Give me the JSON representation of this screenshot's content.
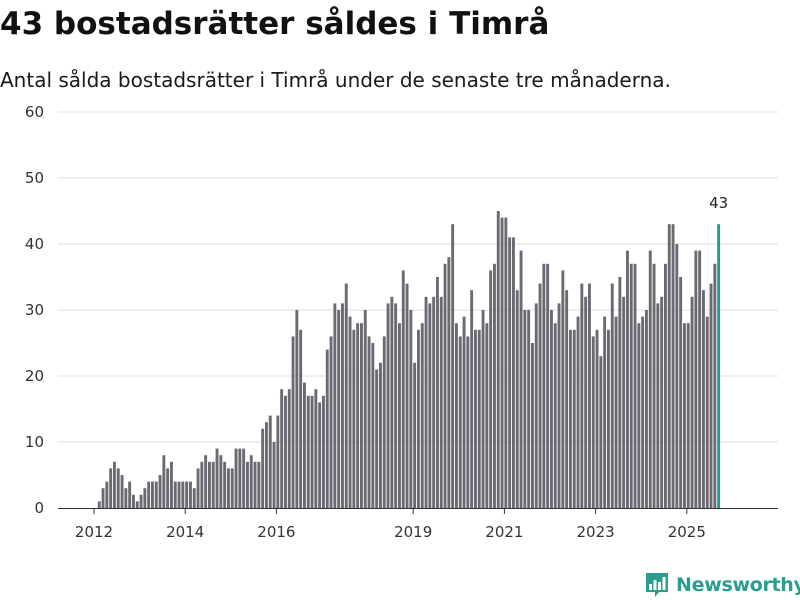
{
  "header": {
    "title": "43 bostadsrätter såldes i Timrå",
    "subtitle": "Antal sålda bostadsrätter i Timrå under de senaste tre månaderna."
  },
  "brand": {
    "name": "Newsworthy",
    "color": "#2a9d8f"
  },
  "colors": {
    "bar": "#6b6a72",
    "highlight": "#1a9e94",
    "grid": "#dddddd",
    "axis": "#333333"
  },
  "chart_data": {
    "type": "bar",
    "title": "43 bostadsrätter såldes i Timrå",
    "xlabel": "",
    "ylabel": "",
    "ylim": [
      0,
      60
    ],
    "yticks": [
      0,
      10,
      20,
      30,
      40,
      50,
      60
    ],
    "xticks": [
      {
        "label": "2012",
        "year": 2012
      },
      {
        "label": "2014",
        "year": 2014
      },
      {
        "label": "2016",
        "year": 2016
      },
      {
        "label": "2019",
        "year": 2019
      },
      {
        "label": "2021",
        "year": 2021
      },
      {
        "label": "2023",
        "year": 2023
      },
      {
        "label": "2025",
        "year": 2025
      }
    ],
    "start": {
      "year": 2012,
      "month": 1
    },
    "highlight_label": "43",
    "values": [
      0,
      1,
      3,
      4,
      6,
      7,
      6,
      5,
      3,
      4,
      2,
      1,
      2,
      3,
      4,
      4,
      4,
      5,
      8,
      6,
      7,
      4,
      4,
      4,
      4,
      4,
      3,
      6,
      7,
      8,
      7,
      7,
      9,
      8,
      7,
      6,
      6,
      9,
      9,
      9,
      7,
      8,
      7,
      7,
      12,
      13,
      14,
      10,
      14,
      18,
      17,
      18,
      26,
      30,
      27,
      19,
      17,
      17,
      18,
      16,
      17,
      24,
      26,
      31,
      30,
      31,
      34,
      29,
      27,
      28,
      28,
      30,
      26,
      25,
      21,
      22,
      26,
      31,
      32,
      31,
      28,
      36,
      34,
      30,
      22,
      27,
      28,
      32,
      31,
      32,
      35,
      32,
      37,
      38,
      43,
      28,
      26,
      29,
      26,
      33,
      27,
      27,
      30,
      28,
      36,
      37,
      45,
      44,
      44,
      41,
      41,
      33,
      39,
      30,
      30,
      25,
      31,
      34,
      37,
      37,
      30,
      28,
      31,
      36,
      33,
      27,
      27,
      29,
      34,
      32,
      34,
      26,
      27,
      23,
      29,
      27,
      34,
      29,
      35,
      32,
      39,
      37,
      37,
      28,
      29,
      30,
      39,
      37,
      31,
      32,
      37,
      43,
      43,
      40,
      35,
      28,
      28,
      32,
      39,
      39,
      33,
      29,
      34,
      37,
      43
    ]
  }
}
